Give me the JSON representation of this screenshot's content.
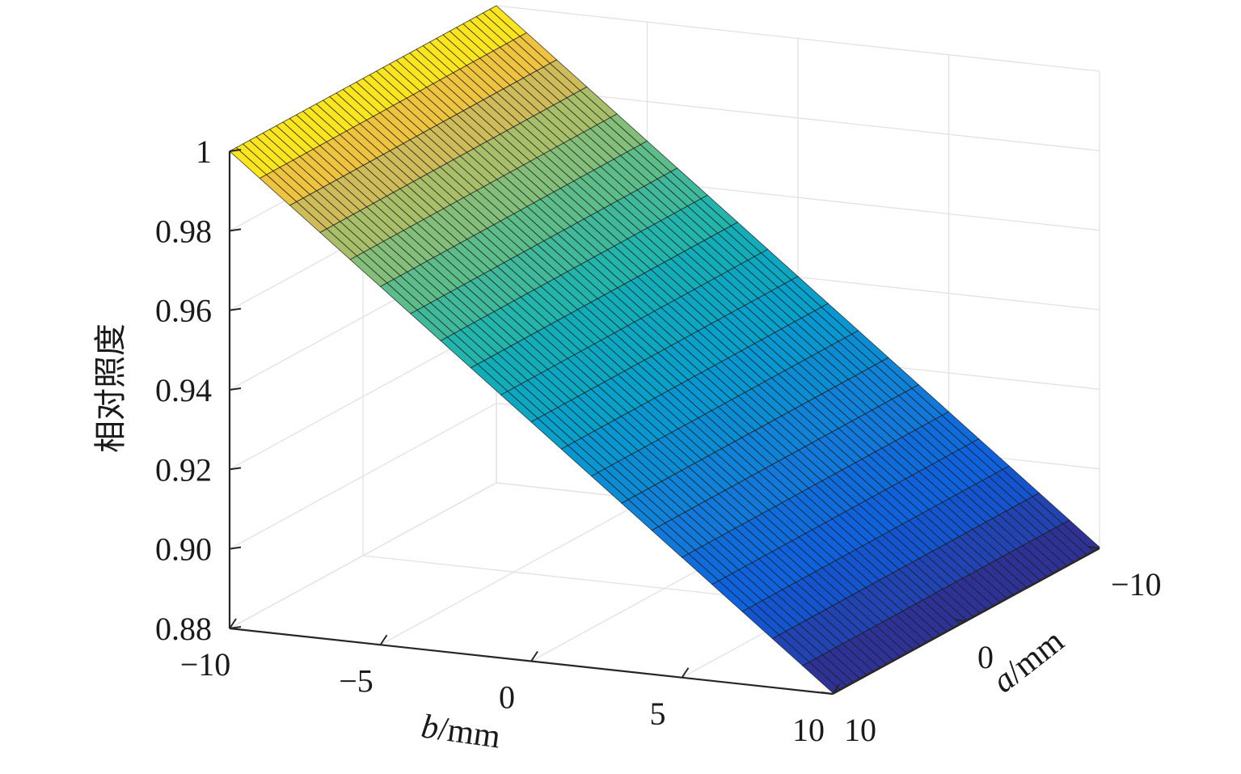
{
  "chart_data": {
    "type": "surface",
    "title": "",
    "xlabel": "b/mm",
    "xlabel_italic": "b",
    "xlabel_unit": "/mm",
    "ylabel": "a/mm",
    "ylabel_italic": "a",
    "ylabel_unit": "/mm",
    "zlabel": "相对照度",
    "x_ticks": [
      -10,
      -5,
      0,
      5,
      10
    ],
    "x_tick_labels": [
      "−10",
      "−5",
      "0",
      "5",
      "10"
    ],
    "y_ticks": [
      -10,
      0,
      10
    ],
    "y_tick_labels": [
      "−10",
      "0",
      "10"
    ],
    "z_ticks": [
      0.88,
      0.9,
      0.92,
      0.94,
      0.96,
      0.98,
      1.0
    ],
    "z_tick_labels": [
      "0.88",
      "0.90",
      "0.92",
      "0.94",
      "0.96",
      "0.98",
      "1"
    ],
    "xlim": [
      -10,
      10
    ],
    "ylim": [
      -10,
      10
    ],
    "zlim": [
      0.88,
      1.0
    ],
    "grid": true,
    "colormap": "parula",
    "surface": {
      "b_range": [
        -10,
        10
      ],
      "a_range": [
        -10,
        10
      ],
      "z_at_b_min": 1.0,
      "z_at_b_max": 0.8803,
      "profile_b": [
        -10,
        -8,
        -6,
        -4,
        -2,
        0,
        2,
        4,
        6,
        8,
        10
      ],
      "profile_z": [
        1.0,
        0.988,
        0.976,
        0.964,
        0.952,
        0.94,
        0.928,
        0.916,
        0.904,
        0.892,
        0.8803
      ],
      "z_varies_with_a": false
    }
  }
}
